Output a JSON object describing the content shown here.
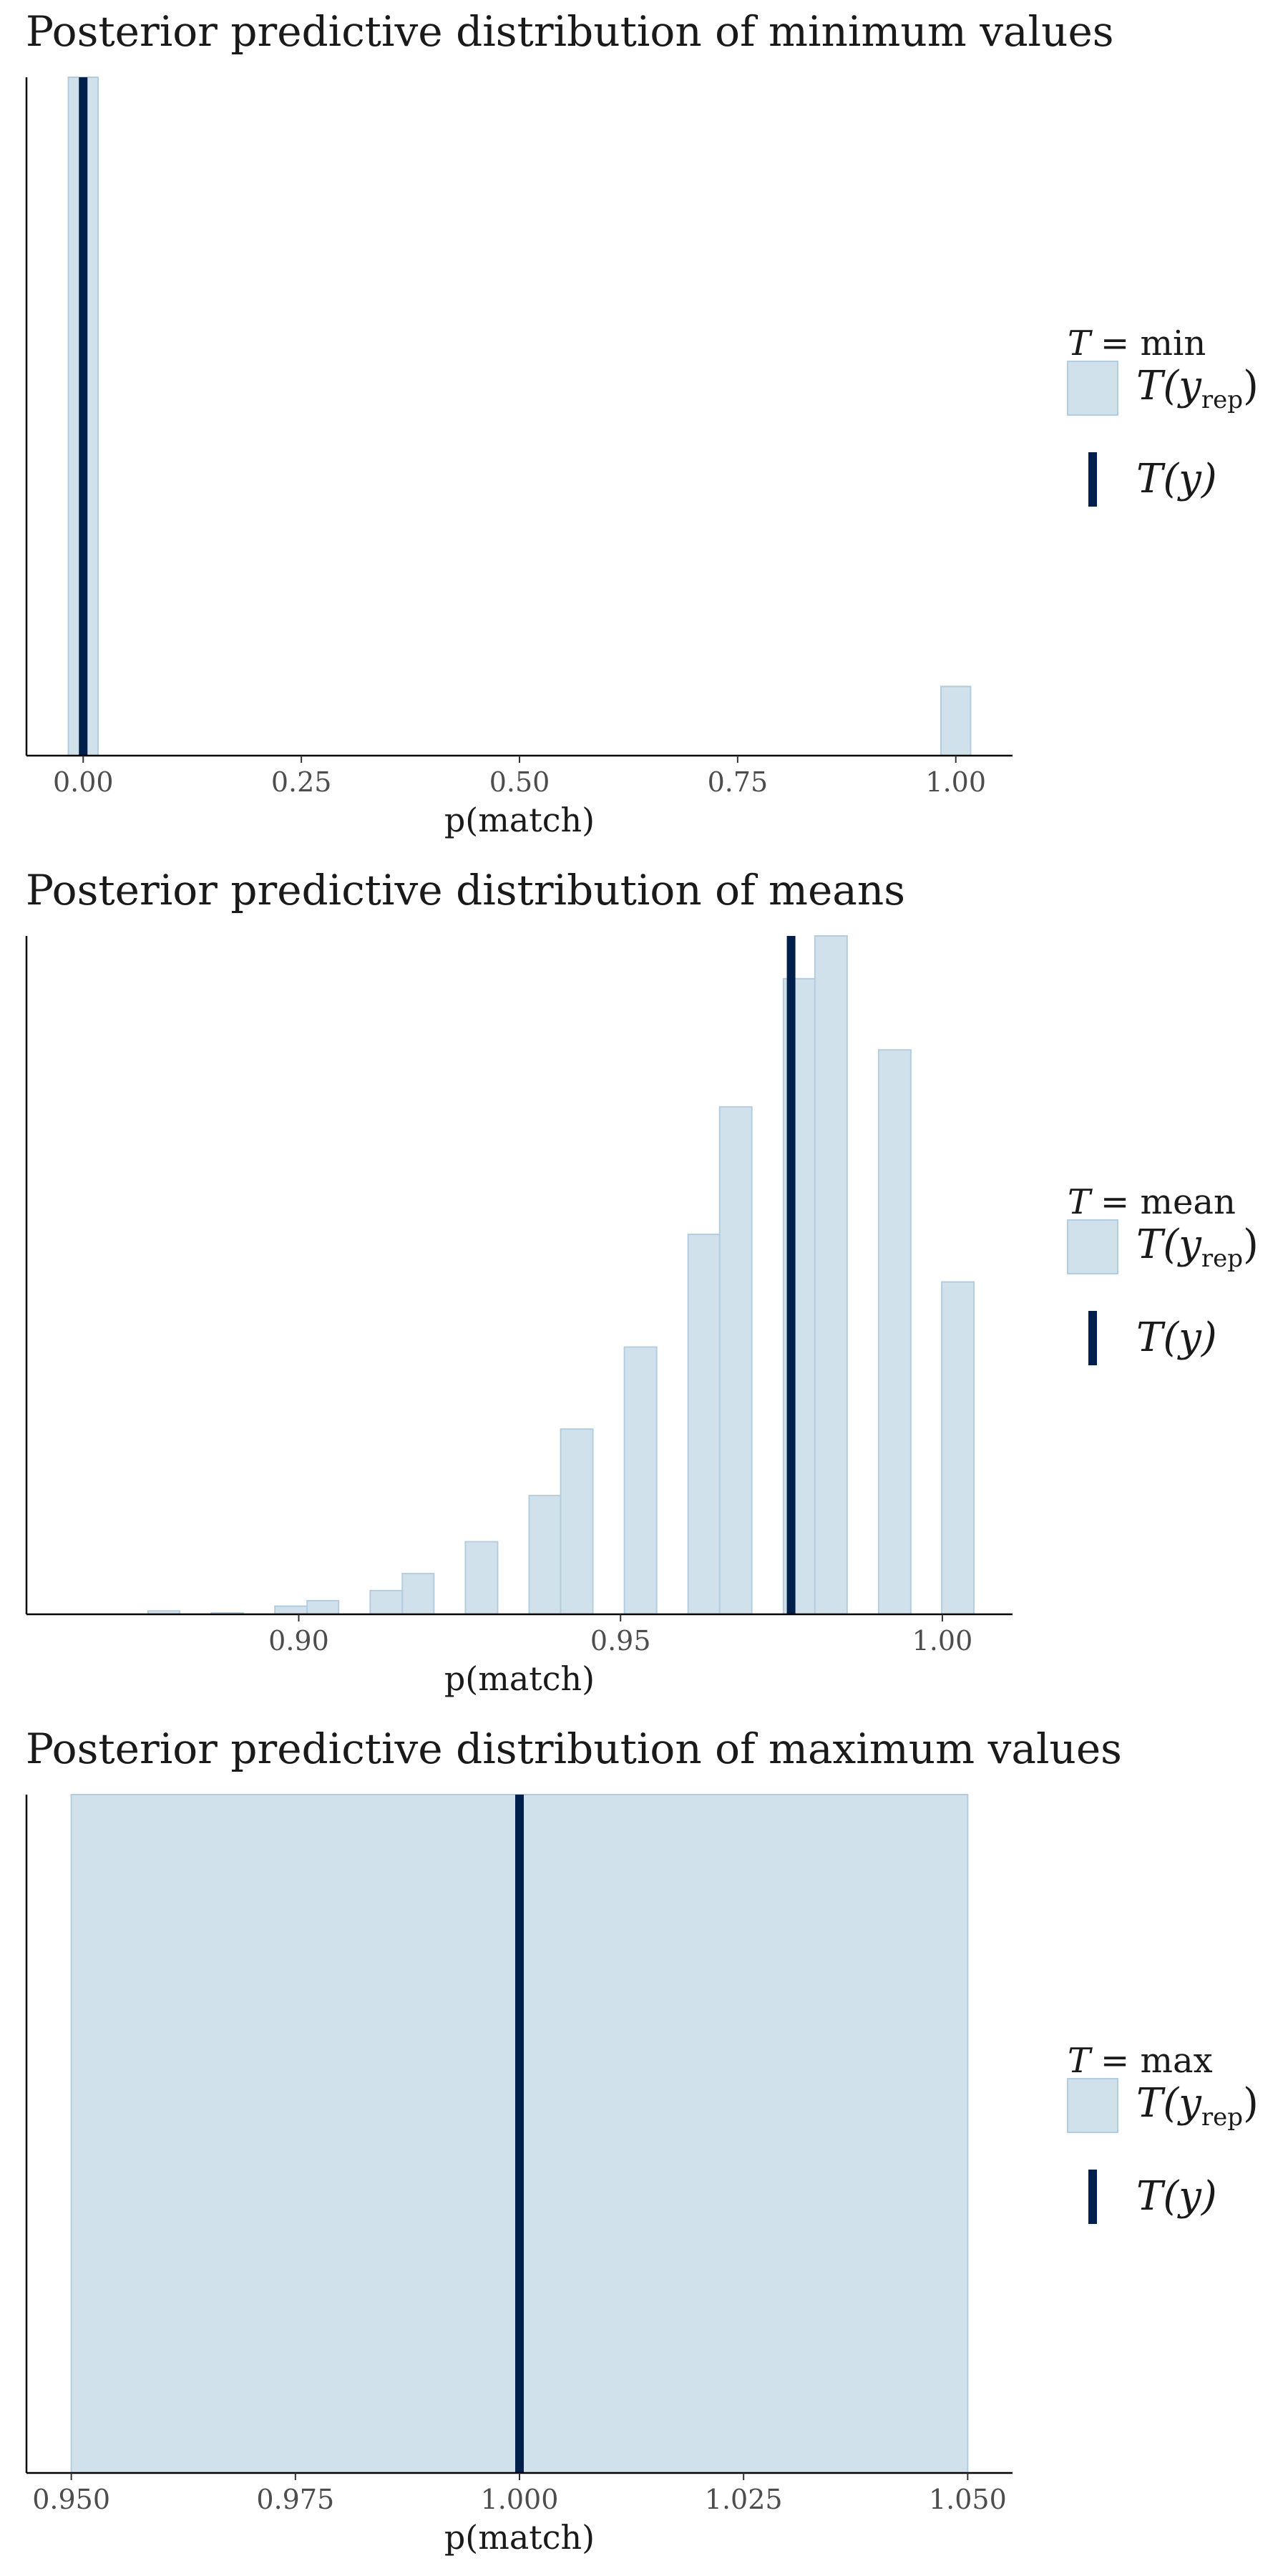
{
  "colors": {
    "bar_fill": "#d1e1ec",
    "bar_stroke": "#b3cde0",
    "observed_line": "#011f4b",
    "axis": "#000000",
    "tick_label": "#4d4d4d",
    "text": "#1a1a1a"
  },
  "chart_data": [
    {
      "type": "bar",
      "title": "Posterior predictive distribution of minimum values",
      "xlabel": "p(match)",
      "ylabel": "",
      "xlim": [
        -0.065,
        1.065
      ],
      "ylim": [
        0,
        1
      ],
      "xticks": [
        0,
        0.25,
        0.5,
        0.75,
        1
      ],
      "xtick_labels": [
        "0.00",
        "0.25",
        "0.50",
        "0.75",
        "1.00"
      ],
      "bars": [
        {
          "x0": -0.017,
          "x1": 0.017,
          "height": 1.0
        },
        {
          "x0": 0.983,
          "x1": 1.017,
          "height": 0.102
        }
      ],
      "observed": 0,
      "legend": {
        "title_var": "T",
        "title_eq": "= min",
        "rep_label": "T(y",
        "rep_sub": "rep",
        "rep_close": ")",
        "obs_label": "T(y)"
      }
    },
    {
      "type": "bar",
      "title": "Posterior predictive distribution of means",
      "xlabel": "p(match)",
      "ylabel": "",
      "xlim": [
        0.8577,
        1.0109
      ],
      "ylim": [
        0,
        1
      ],
      "xticks": [
        0.9,
        0.95,
        1.0
      ],
      "xtick_labels": [
        "0.90",
        "0.95",
        "1.00"
      ],
      "bars": [
        {
          "x0": 0.8766,
          "x1": 0.8815,
          "height": 0.005
        },
        {
          "x0": 0.8864,
          "x1": 0.8914,
          "height": 0.002
        },
        {
          "x0": 0.8963,
          "x1": 0.9013,
          "height": 0.012
        },
        {
          "x0": 0.9013,
          "x1": 0.9062,
          "height": 0.02
        },
        {
          "x0": 0.9111,
          "x1": 0.9161,
          "height": 0.035
        },
        {
          "x0": 0.9161,
          "x1": 0.921,
          "height": 0.06
        },
        {
          "x0": 0.9259,
          "x1": 0.9309,
          "height": 0.107
        },
        {
          "x0": 0.9358,
          "x1": 0.9407,
          "height": 0.175
        },
        {
          "x0": 0.9407,
          "x1": 0.9457,
          "height": 0.273
        },
        {
          "x0": 0.9506,
          "x1": 0.9556,
          "height": 0.394
        },
        {
          "x0": 0.9605,
          "x1": 0.9654,
          "height": 0.56
        },
        {
          "x0": 0.9654,
          "x1": 0.9704,
          "height": 0.748
        },
        {
          "x0": 0.9753,
          "x1": 0.9802,
          "height": 0.937
        },
        {
          "x0": 0.9802,
          "x1": 0.9852,
          "height": 1.0
        },
        {
          "x0": 0.9901,
          "x1": 0.9951,
          "height": 0.832
        },
        {
          "x0": 0.9999,
          "x1": 1.0049,
          "height": 0.49
        }
      ],
      "observed": 0.9765,
      "legend": {
        "title_var": "T",
        "title_eq": "= mean",
        "rep_label": "T(y",
        "rep_sub": "rep",
        "rep_close": ")",
        "obs_label": "T(y)"
      }
    },
    {
      "type": "bar",
      "title": "Posterior predictive distribution of maximum values",
      "xlabel": "p(match)",
      "ylabel": "",
      "xlim": [
        0.945,
        1.055
      ],
      "ylim": [
        0,
        1
      ],
      "xticks": [
        0.95,
        0.975,
        1.0,
        1.025,
        1.05
      ],
      "xtick_labels": [
        "0.950",
        "0.975",
        "1.000",
        "1.025",
        "1.050"
      ],
      "bars": [
        {
          "x0": 0.95,
          "x1": 1.05,
          "height": 1.0
        }
      ],
      "observed": 1.0,
      "legend": {
        "title_var": "T",
        "title_eq": "= max",
        "rep_label": "T(y",
        "rep_sub": "rep",
        "rep_close": ")",
        "obs_label": "T(y)"
      }
    }
  ]
}
